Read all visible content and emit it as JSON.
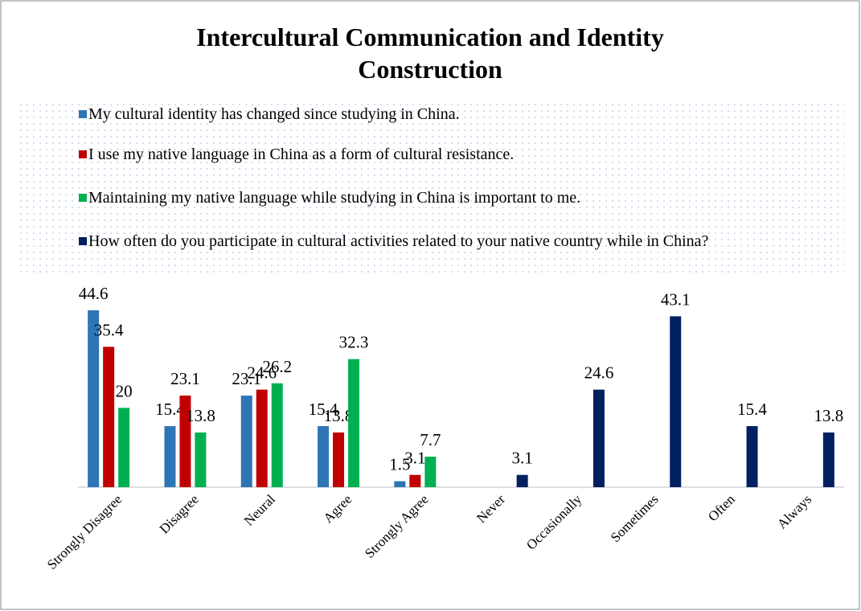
{
  "chart_data": {
    "type": "bar",
    "title": "Intercultural Communication and Identity Construction",
    "categories": [
      "Strongly Disagree",
      "Disagree",
      "Neural",
      "Agree",
      "Strongly Agree",
      "Never",
      "Occasionally",
      "Sometimes",
      "Often",
      "Always"
    ],
    "series": [
      {
        "name": "My cultural identity has changed since studying in China.",
        "color": "#2e75b6",
        "values": [
          44.6,
          15.4,
          23.1,
          15.4,
          1.5,
          null,
          null,
          null,
          null,
          null
        ]
      },
      {
        "name": "I use my native language in China as a form of cultural resistance.",
        "color": "#c00000",
        "values": [
          35.4,
          23.1,
          24.6,
          13.8,
          3.1,
          null,
          null,
          null,
          null,
          null
        ]
      },
      {
        "name": "Maintaining my native language while studying in China is important to me.",
        "color": "#00b050",
        "values": [
          20,
          13.8,
          26.2,
          32.3,
          7.7,
          null,
          null,
          null,
          null,
          null
        ]
      },
      {
        "name": "How often do you participate in cultural activities related to your native country while in China?",
        "color": "#002060",
        "values": [
          null,
          null,
          null,
          null,
          null,
          3.1,
          24.6,
          43.1,
          15.4,
          13.8
        ]
      }
    ],
    "legend": "top"
  }
}
